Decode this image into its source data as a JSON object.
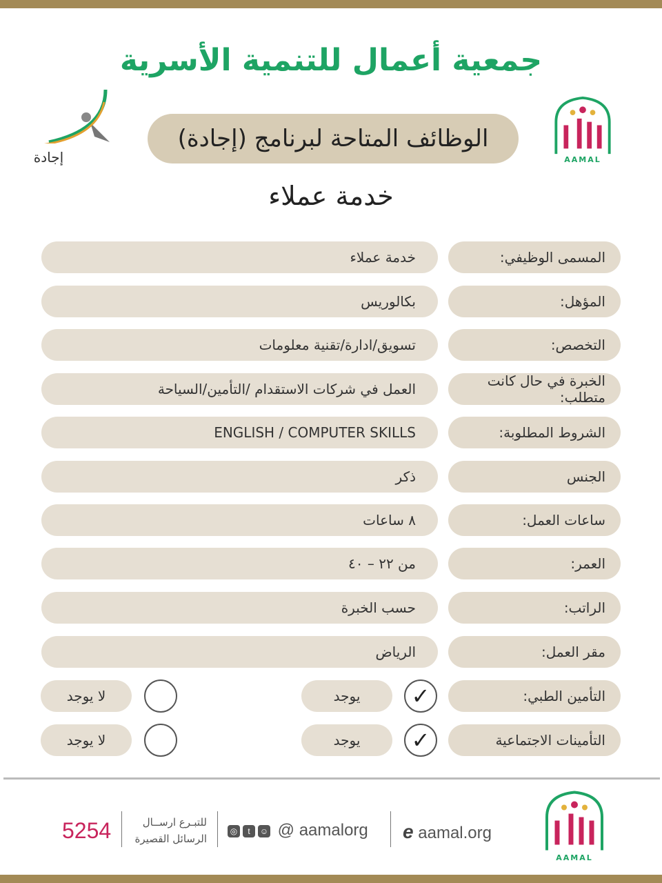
{
  "colors": {
    "accent_gold": "#a38a56",
    "title_green": "#1ea464",
    "pill": "#e6dfd3",
    "sms_number": "#c8245c"
  },
  "header": {
    "title": "جمعية أعمال للتنمية الأسرية",
    "program": "الوظائف المتاحة لبرنامج (إجادة)",
    "job_title": "خدمة عملاء",
    "left_logo_text": "إجادة",
    "right_logo_text": "AAMAL"
  },
  "fields": [
    {
      "label": "المسمى الوظيفي:",
      "value": "خدمة عملاء"
    },
    {
      "label": "المؤهل:",
      "value": "بكالوريس"
    },
    {
      "label": "التخصص:",
      "value": "تسويق/ادارة/تقنية معلومات"
    },
    {
      "label": "الخبرة في حال كانت متطلب:",
      "value": "العمل في شركات الاستقدام /التأمين/السياحة"
    },
    {
      "label": "الشروط المطلوبة:",
      "value": "ENGLISH / COMPUTER SKILLS"
    },
    {
      "label": "الجنس",
      "value": "ذكر"
    },
    {
      "label": "ساعات العمل:",
      "value": "٨ ساعات"
    },
    {
      "label": "العمر:",
      "value": "من ٢٢ – ٤٠"
    },
    {
      "label": "الراتب:",
      "value": "حسب الخبرة"
    },
    {
      "label": "مقر العمل:",
      "value": "الرياض"
    }
  ],
  "benefits": [
    {
      "label": "التأمين الطبي:",
      "yes": "يوجد",
      "no": "لا يوجد",
      "selected": "yes"
    },
    {
      "label": "التأمينات الاجتماعية",
      "yes": "يوجد",
      "no": "لا يوجد",
      "selected": "yes"
    }
  ],
  "footer": {
    "website": "aamal.org",
    "social": "@ aamalorg",
    "sms_text_1": "للتبـرع ارســال",
    "sms_text_2": "الرسائل القصيرة",
    "sms_number": "5254",
    "social_icons": [
      "instagram-icon",
      "twitter-icon",
      "snapchat-icon"
    ],
    "web_icon": "ie-icon"
  }
}
